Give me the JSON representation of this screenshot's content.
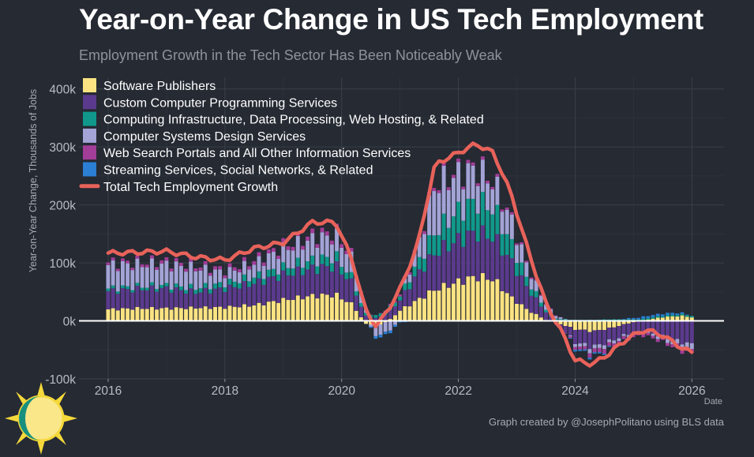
{
  "header": {
    "title": "Year-on-Year Change in US Tech Employment",
    "subtitle": "Employment Growth in the Tech Sector Has Been Noticeably Weak",
    "caption": "Graph created by @JosephPolitano using BLS data"
  },
  "chart_data": {
    "type": "bar",
    "stacked": true,
    "title": "Year-on-Year Change in US Tech Employment",
    "subtitle": "Employment Growth in the Tech Sector Has Been Noticeably Weak",
    "xlabel": "Date",
    "ylabel": "Year-on-Year Change, Thousands of Jobs",
    "xlim": [
      2015.5,
      2026.55
    ],
    "ylim": [
      -100,
      420
    ],
    "x_ticks": [
      2016,
      2018,
      2020,
      2022,
      2024,
      2026
    ],
    "x_tick_labels": [
      "2016",
      "2018",
      "2020",
      "2022",
      "2024",
      "2026"
    ],
    "y_ticks": [
      -100,
      0,
      100,
      200,
      300,
      400
    ],
    "y_tick_labels": [
      "-100k",
      "0k",
      "100k",
      "200k",
      "300k",
      "400k"
    ],
    "grid": true,
    "legend_position": "top-left",
    "start": 2016.0,
    "step_months": 1,
    "keyframe_dates": [
      2016.0,
      2016.5,
      2017.0,
      2017.5,
      2018.0,
      2018.5,
      2019.0,
      2019.5,
      2019.9,
      2020.2,
      2020.4,
      2020.6,
      2020.8,
      2021.0,
      2021.3,
      2021.6,
      2022.0,
      2022.3,
      2022.6,
      2022.9,
      2023.2,
      2023.5,
      2023.8,
      2024.0,
      2024.3,
      2024.6,
      2024.9,
      2025.2,
      2025.5,
      2025.8,
      2026.0
    ],
    "series": [
      {
        "name": "Software Publishers",
        "color": "#fbe382",
        "keyframe_values": [
          22,
          24,
          24,
          25,
          26,
          30,
          40,
          48,
          50,
          30,
          -5,
          -10,
          0,
          20,
          40,
          60,
          75,
          85,
          80,
          45,
          20,
          2,
          -8,
          -16,
          -20,
          -14,
          -5,
          2,
          7,
          10,
          7
        ]
      },
      {
        "name": "Custom Computer Programming Services",
        "color": "#5b3a8d",
        "keyframe_values": [
          35,
          37,
          38,
          30,
          36,
          42,
          48,
          52,
          55,
          40,
          10,
          5,
          15,
          20,
          50,
          70,
          80,
          85,
          80,
          70,
          40,
          15,
          -10,
          -25,
          -30,
          -25,
          -20,
          -20,
          -30,
          -40,
          -45
        ]
      },
      {
        "name": "Computing Infrastructure, Data Processing, Web Hosting, & Related",
        "color": "#10988b",
        "keyframe_values": [
          5,
          5,
          6,
          8,
          10,
          12,
          14,
          16,
          18,
          10,
          5,
          5,
          8,
          8,
          20,
          40,
          55,
          60,
          55,
          35,
          15,
          5,
          3,
          2,
          2,
          3,
          3,
          3,
          3,
          3,
          3
        ]
      },
      {
        "name": "Computer Systems Design Services",
        "color": "#a3a3d6",
        "keyframe_values": [
          45,
          42,
          40,
          38,
          20,
          25,
          35,
          40,
          40,
          35,
          10,
          -20,
          -20,
          0,
          30,
          90,
          70,
          60,
          50,
          45,
          25,
          10,
          2,
          -5,
          -8,
          -6,
          -4,
          -3,
          -6,
          -10,
          -12
        ]
      },
      {
        "name": "Web Search Portals and All Other Information Services",
        "color": "#a23d98",
        "keyframe_values": [
          5,
          5,
          6,
          6,
          6,
          7,
          7,
          8,
          8,
          6,
          2,
          0,
          2,
          4,
          6,
          6,
          6,
          6,
          5,
          4,
          3,
          2,
          0,
          -5,
          -8,
          -8,
          -6,
          -5,
          -5,
          -6,
          -6
        ]
      },
      {
        "name": "Streaming Services, Social Networks, & Related",
        "color": "#2b7fd4",
        "keyframe_values": [
          0,
          0,
          0,
          0,
          0,
          0,
          0,
          0,
          0,
          0,
          0,
          -5,
          -5,
          -3,
          0,
          0,
          0,
          0,
          0,
          0,
          0,
          0,
          0,
          -3,
          -3,
          -2,
          2,
          4,
          4,
          3,
          0
        ]
      }
    ],
    "total_series": {
      "name": "Total Tech Employment Growth",
      "color": "#e8625a",
      "keyframe_values": [
        117,
        118,
        120,
        110,
        105,
        125,
        135,
        170,
        170,
        100,
        20,
        -10,
        20,
        55,
        130,
        270,
        290,
        305,
        290,
        220,
        120,
        30,
        -25,
        -68,
        -75,
        -55,
        -30,
        -15,
        -25,
        -45,
        -55
      ]
    }
  }
}
